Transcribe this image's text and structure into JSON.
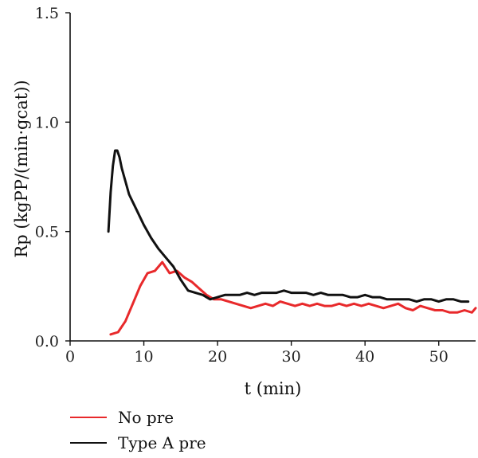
{
  "chart_data": {
    "type": "line",
    "title": "",
    "xlabel": "t (min)",
    "ylabel": "Rp (kgPP/(min·gcat))",
    "xlim": [
      0,
      55
    ],
    "ylim": [
      0,
      1.5
    ],
    "x_ticks": [
      "0",
      "10",
      "20",
      "30",
      "40",
      "50"
    ],
    "y_ticks": [
      "0.0",
      "0.5",
      "1.0",
      "1.5"
    ],
    "grid": false,
    "legend_position": "bottom-left, below plot",
    "series": [
      {
        "name": "No pre",
        "color": "#e8292b",
        "x": [
          5.5,
          6.5,
          7.5,
          8.5,
          9.5,
          10.5,
          11.5,
          12.5,
          13.5,
          14.5,
          15.5,
          16.5,
          17.5,
          18.5,
          19.5,
          20.5,
          21.5,
          22.5,
          23.5,
          24.5,
          25.5,
          26.5,
          27.5,
          28.5,
          29.5,
          30.5,
          31.5,
          32.5,
          33.5,
          34.5,
          35.5,
          36.5,
          37.5,
          38.5,
          39.5,
          40.5,
          41.5,
          42.5,
          43.5,
          44.5,
          45.5,
          46.5,
          47.5,
          48.5,
          49.5,
          50.5,
          51.5,
          52.5,
          53.5,
          54.5,
          55
        ],
        "y": [
          0.03,
          0.04,
          0.09,
          0.17,
          0.25,
          0.31,
          0.32,
          0.36,
          0.31,
          0.32,
          0.29,
          0.27,
          0.24,
          0.21,
          0.19,
          0.19,
          0.18,
          0.17,
          0.16,
          0.15,
          0.16,
          0.17,
          0.16,
          0.18,
          0.17,
          0.16,
          0.17,
          0.16,
          0.17,
          0.16,
          0.16,
          0.17,
          0.16,
          0.17,
          0.16,
          0.17,
          0.16,
          0.15,
          0.16,
          0.17,
          0.15,
          0.14,
          0.16,
          0.15,
          0.14,
          0.14,
          0.13,
          0.13,
          0.14,
          0.13,
          0.15
        ]
      },
      {
        "name": "Type A pre",
        "color": "#111111",
        "x": [
          5.2,
          5.5,
          5.8,
          6.1,
          6.4,
          6.7,
          7.0,
          7.5,
          8.0,
          9.0,
          10.0,
          11.0,
          12.0,
          13.0,
          14.0,
          15.0,
          16.0,
          17.0,
          18.0,
          19.0,
          20.0,
          21.0,
          22.0,
          23.0,
          24.0,
          25.0,
          26.0,
          27.0,
          28.0,
          29.0,
          30.0,
          31.0,
          32.0,
          33.0,
          34.0,
          35.0,
          36.0,
          37.0,
          38.0,
          39.0,
          40.0,
          41.0,
          42.0,
          43.0,
          44.0,
          45.0,
          46.0,
          47.0,
          48.0,
          49.0,
          50.0,
          51.0,
          52.0,
          53.0,
          54.0
        ],
        "y": [
          0.5,
          0.68,
          0.8,
          0.87,
          0.87,
          0.84,
          0.79,
          0.73,
          0.67,
          0.6,
          0.53,
          0.47,
          0.42,
          0.38,
          0.34,
          0.28,
          0.23,
          0.22,
          0.21,
          0.19,
          0.2,
          0.21,
          0.21,
          0.21,
          0.22,
          0.21,
          0.22,
          0.22,
          0.22,
          0.23,
          0.22,
          0.22,
          0.22,
          0.21,
          0.22,
          0.21,
          0.21,
          0.21,
          0.2,
          0.2,
          0.21,
          0.2,
          0.2,
          0.19,
          0.19,
          0.19,
          0.19,
          0.18,
          0.19,
          0.19,
          0.18,
          0.19,
          0.19,
          0.18,
          0.18
        ]
      }
    ]
  }
}
